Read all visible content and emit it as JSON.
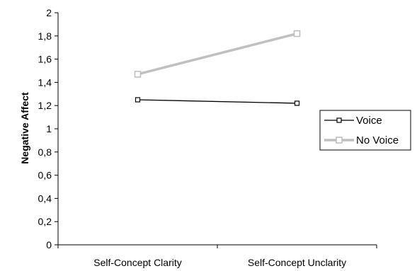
{
  "chart_data": {
    "type": "line",
    "title": "",
    "xlabel": "",
    "ylabel": "Negative Affect",
    "categories": [
      "Self-Concept Clarity",
      "Self-Concept Unclarity"
    ],
    "ylim": [
      0,
      2
    ],
    "ytick_labels": [
      "0",
      "0,2",
      "0,4",
      "0,6",
      "0,8",
      "1",
      "1,2",
      "1,4",
      "1,6",
      "1,8",
      "2"
    ],
    "grid": false,
    "legend_position": "right",
    "series": [
      {
        "name": "Voice",
        "values": [
          1.25,
          1.22
        ],
        "color": "#000000",
        "marker": "square-open"
      },
      {
        "name": "No Voice",
        "values": [
          1.47,
          1.82
        ],
        "color": "#c0c0c0",
        "marker": "square-open"
      }
    ]
  }
}
